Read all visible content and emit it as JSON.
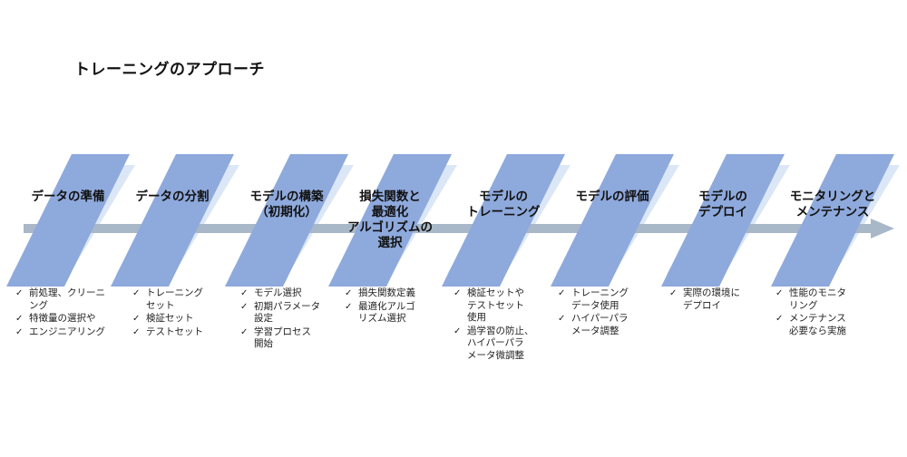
{
  "title": "トレーニングのアプローチ",
  "colors": {
    "shape_fill": "#8ea9dc",
    "shadow_fill": "#dbe7f6",
    "arrow_fill": "#a9b8c9"
  },
  "bullet_icon": "check-icon",
  "steps": [
    {
      "label_lines": [
        "データの準備"
      ],
      "bullets": [
        [
          "前処理、クリーニ",
          "ング"
        ],
        [
          "特徴量の選択や"
        ],
        [
          "エンジニアリング"
        ]
      ]
    },
    {
      "label_lines": [
        "データの分割"
      ],
      "bullets": [
        [
          "トレーニング",
          "セット"
        ],
        [
          "検証セット"
        ],
        [
          "テストセット"
        ]
      ]
    },
    {
      "label_lines": [
        "モデルの構築",
        "（初期化）"
      ],
      "bullets": [
        [
          "モデル選択"
        ],
        [
          "初期パラメータ",
          "設定"
        ],
        [
          "学習プロセス",
          "開始"
        ]
      ]
    },
    {
      "label_lines": [
        "損失関数と",
        "最適化",
        "アルゴリズムの",
        "選択"
      ],
      "bullets": [
        [
          "損失関数定義"
        ],
        [
          "最適化アルゴ",
          "リズム選択"
        ]
      ]
    },
    {
      "label_lines": [
        "モデルの",
        "トレーニング"
      ],
      "bullets": [
        [
          "検証セットや",
          "テストセット",
          "使用"
        ],
        [
          "過学習の防止、",
          "ハイパーパラ",
          "メータ微調整"
        ]
      ]
    },
    {
      "label_lines": [
        "モデルの評価"
      ],
      "bullets": [
        [
          "トレーニング",
          "データ使用"
        ],
        [
          "ハイパーパラ",
          "メータ調整"
        ]
      ]
    },
    {
      "label_lines": [
        "モデルの",
        "デプロイ"
      ],
      "bullets": [
        [
          "実際の環境に",
          "デプロイ"
        ]
      ]
    },
    {
      "label_lines": [
        "モニタリングと",
        "メンテナンス"
      ],
      "bullets": [
        [
          "性能のモニタ",
          "リング"
        ],
        [
          "メンテナンス",
          "必要なら実施"
        ]
      ]
    }
  ]
}
